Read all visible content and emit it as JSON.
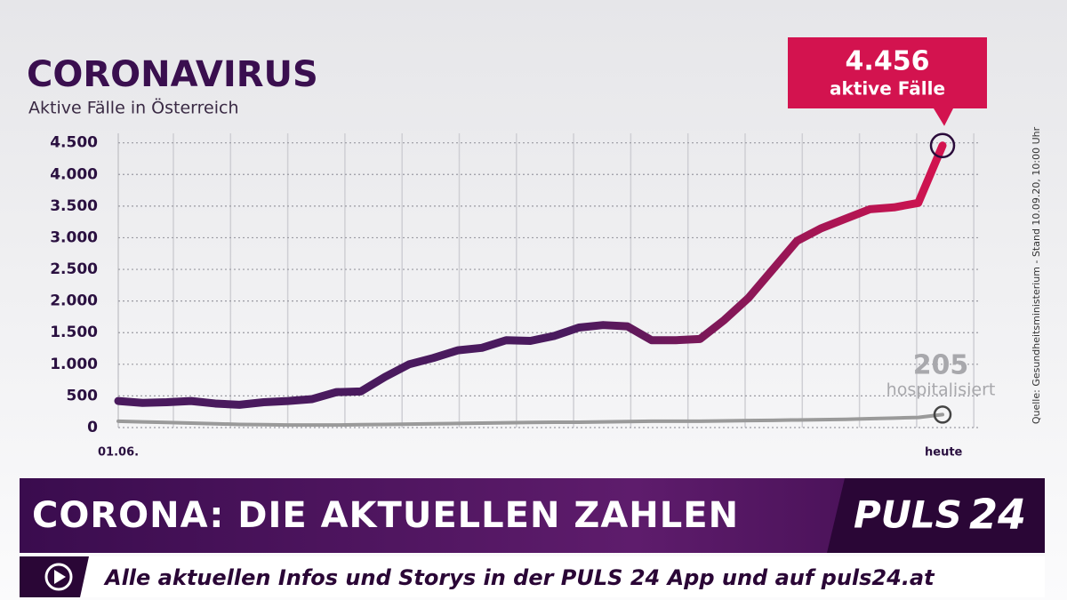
{
  "chart_data": {
    "type": "line",
    "title": "CORONAVIRUS",
    "subtitle": "Aktive Fälle in Österreich",
    "source": "Quelle: Gesundheitsministerium - Stand 10.09.20, 10:00 Uhr",
    "categories": [
      "01.06.",
      null,
      null,
      null,
      null,
      null,
      null,
      null,
      null,
      null,
      null,
      null,
      null,
      null,
      null,
      null,
      null,
      null,
      null,
      null,
      null,
      null,
      null,
      null,
      null,
      null,
      null,
      null,
      null,
      null,
      null,
      null,
      null,
      null,
      "heute"
    ],
    "series": [
      {
        "name": "aktive Fälle",
        "color": "#4a1a5e",
        "color_end": "#d3134f",
        "values": [
          420,
          390,
          400,
          420,
          380,
          360,
          400,
          420,
          450,
          560,
          570,
          800,
          1000,
          1100,
          1220,
          1260,
          1380,
          1370,
          1450,
          1580,
          1620,
          1600,
          1380,
          1380,
          1400,
          1700,
          2050,
          2500,
          2950,
          3150,
          3300,
          3450,
          3480,
          3550,
          4456
        ],
        "value_labels": [
          null,
          null,
          null,
          null,
          null,
          null,
          null,
          null,
          null,
          null,
          null,
          null,
          null,
          null,
          null,
          null,
          null,
          null,
          null,
          null,
          null,
          null,
          null,
          null,
          null,
          null,
          null,
          null,
          null,
          null,
          null,
          null,
          null,
          null,
          "4.456"
        ]
      },
      {
        "name": "hospitalisiert",
        "color": "#9a9a9a",
        "values": [
          100,
          90,
          80,
          70,
          60,
          50,
          45,
          40,
          40,
          40,
          45,
          50,
          55,
          60,
          65,
          70,
          75,
          80,
          85,
          85,
          90,
          95,
          100,
          100,
          100,
          105,
          110,
          115,
          120,
          125,
          130,
          140,
          150,
          160,
          205
        ]
      }
    ],
    "ylim": [
      0,
      4650
    ],
    "yticks": [
      0,
      500,
      {
        "value": 1000,
        "label": "1.000"
      },
      {
        "value": 1500,
        "label": "1.500"
      },
      {
        "value": 2000,
        "label": "2.000"
      },
      {
        "value": 2500,
        "label": "2.500"
      },
      {
        "value": 3000,
        "label": "3.000"
      },
      {
        "value": 3500,
        "label": "3.500"
      },
      {
        "value": 4000,
        "label": "4.000"
      },
      {
        "value": 4500,
        "label": "4.500"
      }
    ],
    "grid": true
  },
  "banner": {
    "headline": "CORONA: DIE AKTUELLEN ZAHLEN",
    "logo_word": "PULS",
    "logo_number": "24",
    "ticker": "Alle aktuellen Infos und Storys in der PULS 24 App und auf puls24.at"
  }
}
